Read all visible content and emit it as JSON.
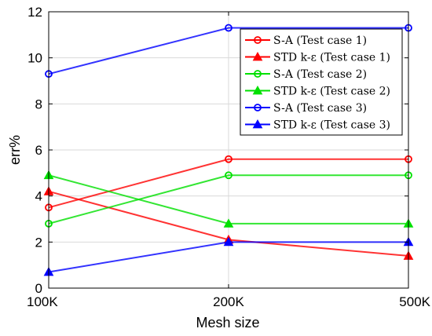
{
  "chart_data": {
    "type": "line",
    "title": "",
    "xlabel": "Mesh size",
    "ylabel": "err%",
    "categories": [
      "100K",
      "200K",
      "500K"
    ],
    "ylim": [
      0,
      12
    ],
    "yticks": [
      "0",
      "2",
      "4",
      "6",
      "8",
      "10",
      "12"
    ],
    "grid": true,
    "legend_position": "top-right",
    "series": [
      {
        "name": "S-A (Test case 1)",
        "values": [
          3.5,
          5.6,
          5.6
        ],
        "color": "#ff0000",
        "marker": "circle"
      },
      {
        "name": "STD k-ε (Test case 1)",
        "values": [
          4.2,
          2.1,
          1.4
        ],
        "color": "#ff0000",
        "marker": "triangle"
      },
      {
        "name": "S-A (Test case 2)",
        "values": [
          2.8,
          4.9,
          4.9
        ],
        "color": "#00e000",
        "marker": "circle"
      },
      {
        "name": "STD k-ε (Test case 2)",
        "values": [
          4.9,
          2.8,
          2.8
        ],
        "color": "#00e000",
        "marker": "triangle"
      },
      {
        "name": "S-A (Test case 3)",
        "values": [
          9.3,
          11.3,
          11.3
        ],
        "color": "#0000ff",
        "marker": "circle"
      },
      {
        "name": "STD k-ε (Test case 3)",
        "values": [
          0.7,
          2.0,
          2.0
        ],
        "color": "#0000ff",
        "marker": "triangle"
      }
    ]
  }
}
